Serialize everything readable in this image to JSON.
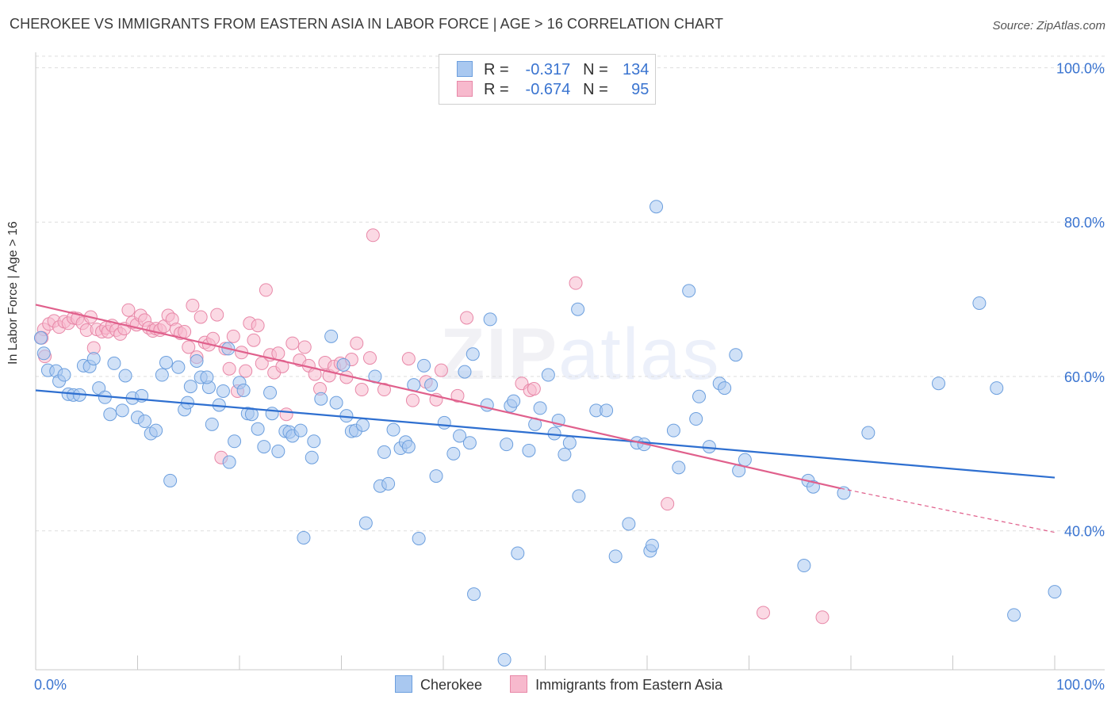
{
  "title": "CHEROKEE VS IMMIGRANTS FROM EASTERN ASIA IN LABOR FORCE | AGE > 16 CORRELATION CHART",
  "source": "Source: ZipAtlas.com",
  "watermark": "ZIPatlas",
  "colors": {
    "cherokee_fill": "#a9c8f0",
    "cherokee_stroke": "#6c9fde",
    "cherokee_line": "#2e6fd0",
    "eastern_asia_fill": "#f7b9cd",
    "eastern_asia_stroke": "#e888a8",
    "eastern_asia_line": "#e0608c",
    "tick_label": "#3a74d0"
  },
  "legend": {
    "rows": [
      {
        "r_label": "R =",
        "r_value": "-0.317",
        "n_label": "N =",
        "n_value": "134"
      },
      {
        "r_label": "R =",
        "r_value": "-0.674",
        "n_label": "N =",
        "n_value": "95"
      }
    ]
  },
  "bottom_legend": [
    "Cherokee",
    "Immigrants from Eastern Asia"
  ],
  "chart_data": {
    "type": "scatter",
    "title": "CHEROKEE VS IMMIGRANTS FROM EASTERN ASIA IN LABOR FORCE | AGE > 16 CORRELATION CHART",
    "xlabel": "",
    "ylabel": "In Labor Force | Age > 16",
    "xlim": [
      0,
      100
    ],
    "ylim": [
      22,
      102
    ],
    "x_tick_labels": [
      "0.0%",
      "100.0%"
    ],
    "y_tick_labels": [
      "40.0%",
      "60.0%",
      "80.0%",
      "100.0%"
    ],
    "y_ticks": [
      40,
      60,
      80,
      100
    ],
    "grid": true,
    "legend_position": "top-center",
    "series": [
      {
        "name": "Cherokee",
        "r": -0.317,
        "n": 134,
        "trend": {
          "x": [
            0,
            100
          ],
          "y": [
            58.2,
            46.9
          ]
        },
        "points": [
          [
            0.5,
            65
          ],
          [
            0.8,
            63
          ],
          [
            1.2,
            60.8
          ],
          [
            2,
            60.7
          ],
          [
            2.3,
            59.4
          ],
          [
            2.8,
            60.2
          ],
          [
            3.2,
            57.7
          ],
          [
            3.7,
            57.6
          ],
          [
            4.3,
            57.6
          ],
          [
            4.7,
            61.4
          ],
          [
            5.3,
            61.3
          ],
          [
            5.7,
            62.3
          ],
          [
            6.2,
            58.5
          ],
          [
            6.8,
            57.3
          ],
          [
            7.3,
            55.1
          ],
          [
            7.7,
            61.7
          ],
          [
            8.5,
            55.6
          ],
          [
            8.8,
            60.1
          ],
          [
            9.5,
            57.2
          ],
          [
            10,
            54.7
          ],
          [
            10.4,
            57.5
          ],
          [
            10.7,
            54.2
          ],
          [
            11.3,
            52.6
          ],
          [
            11.8,
            53
          ],
          [
            12.4,
            60.2
          ],
          [
            12.8,
            61.8
          ],
          [
            13.2,
            46.5
          ],
          [
            14,
            61.2
          ],
          [
            14.6,
            55.7
          ],
          [
            14.9,
            56.6
          ],
          [
            15.2,
            58.7
          ],
          [
            15.8,
            62
          ],
          [
            16.2,
            59.9
          ],
          [
            17,
            58.6
          ],
          [
            17.3,
            53.8
          ],
          [
            18,
            56.3
          ],
          [
            18.4,
            58.1
          ],
          [
            18.9,
            63.6
          ],
          [
            19,
            48.9
          ],
          [
            19.5,
            51.6
          ],
          [
            20,
            59.2
          ],
          [
            20.4,
            58.2
          ],
          [
            20.8,
            55.2
          ],
          [
            21.2,
            55.1
          ],
          [
            21.8,
            53.2
          ],
          [
            22.4,
            50.9
          ],
          [
            23,
            57.9
          ],
          [
            23.2,
            55.2
          ],
          [
            23.8,
            50.3
          ],
          [
            24.5,
            52.9
          ],
          [
            24.9,
            52.8
          ],
          [
            25.2,
            52.3
          ],
          [
            26,
            53
          ],
          [
            26.3,
            39.1
          ],
          [
            27.1,
            49.5
          ],
          [
            27.3,
            51.6
          ],
          [
            28,
            57.1
          ],
          [
            29,
            65.2
          ],
          [
            29.5,
            56.6
          ],
          [
            30.2,
            61.5
          ],
          [
            30.5,
            54.9
          ],
          [
            31,
            52.9
          ],
          [
            31.4,
            53
          ],
          [
            32.1,
            53.7
          ],
          [
            32.4,
            41
          ],
          [
            33.3,
            60
          ],
          [
            33.8,
            45.8
          ],
          [
            34.2,
            50.2
          ],
          [
            34.6,
            46.1
          ],
          [
            35.1,
            53.1
          ],
          [
            35.8,
            50.7
          ],
          [
            36.3,
            51.5
          ],
          [
            36.6,
            50.9
          ],
          [
            37.1,
            58.9
          ],
          [
            37.6,
            39
          ],
          [
            38.1,
            61.4
          ],
          [
            38.8,
            58.9
          ],
          [
            39.3,
            47.1
          ],
          [
            40.1,
            54
          ],
          [
            41,
            50
          ],
          [
            41.6,
            52.3
          ],
          [
            42.1,
            60.6
          ],
          [
            42.6,
            51.4
          ],
          [
            42.9,
            62.9
          ],
          [
            43,
            31.8
          ],
          [
            44.3,
            56.3
          ],
          [
            44.6,
            67.4
          ],
          [
            46.2,
            51.2
          ],
          [
            46.6,
            56.2
          ],
          [
            46.9,
            56.8
          ],
          [
            47.3,
            37.1
          ],
          [
            48.4,
            50.4
          ],
          [
            49,
            53.8
          ],
          [
            49.5,
            55.9
          ],
          [
            50.3,
            60.2
          ],
          [
            50.9,
            52.6
          ],
          [
            51.3,
            54.3
          ],
          [
            51.9,
            49.9
          ],
          [
            52.4,
            51.4
          ],
          [
            53.3,
            44.5
          ],
          [
            53.2,
            68.7
          ],
          [
            55,
            55.6
          ],
          [
            56,
            55.6
          ],
          [
            56.9,
            36.7
          ],
          [
            58.2,
            40.9
          ],
          [
            59,
            51.4
          ],
          [
            59.7,
            51.2
          ],
          [
            60.3,
            37.4
          ],
          [
            60.5,
            38.1
          ],
          [
            60.9,
            82
          ],
          [
            62.6,
            53
          ],
          [
            63.1,
            48.2
          ],
          [
            64.1,
            71.1
          ],
          [
            64.8,
            54.5
          ],
          [
            65.1,
            57.4
          ],
          [
            66.1,
            50.9
          ],
          [
            67.1,
            59.1
          ],
          [
            67.6,
            58.5
          ],
          [
            68.7,
            62.8
          ],
          [
            69,
            47.8
          ],
          [
            69.6,
            49.2
          ],
          [
            75.4,
            35.5
          ],
          [
            75.8,
            46.5
          ],
          [
            76.3,
            45.7
          ],
          [
            79.3,
            44.9
          ],
          [
            81.7,
            52.7
          ],
          [
            88.6,
            59.1
          ],
          [
            92.6,
            69.5
          ],
          [
            94.3,
            58.5
          ],
          [
            96,
            29.1
          ],
          [
            100,
            32.1
          ],
          [
            46,
            23.3
          ],
          [
            16.8,
            59.9
          ]
        ]
      },
      {
        "name": "Immigrants from Eastern Asia",
        "r": -0.674,
        "n": 95,
        "trend": {
          "x": [
            0,
            79
          ],
          "y": [
            69.3,
            45.5
          ]
        },
        "trend_dashed": {
          "x": [
            79,
            100
          ],
          "y": [
            45.5,
            39.8
          ]
        },
        "points": [
          [
            0.8,
            66.1
          ],
          [
            1.3,
            66.8
          ],
          [
            1.8,
            67.2
          ],
          [
            2.3,
            66.4
          ],
          [
            2.8,
            67.1
          ],
          [
            3.2,
            66.9
          ],
          [
            3.7,
            67.6
          ],
          [
            4.1,
            67.5
          ],
          [
            4.6,
            66.9
          ],
          [
            5,
            66
          ],
          [
            5.4,
            67.7
          ],
          [
            5.7,
            63.7
          ],
          [
            6,
            66.1
          ],
          [
            6.5,
            65.8
          ],
          [
            6.9,
            66.3
          ],
          [
            7.1,
            65.8
          ],
          [
            7.5,
            66.6
          ],
          [
            7.9,
            66
          ],
          [
            8.3,
            65.5
          ],
          [
            8.7,
            66.2
          ],
          [
            9.1,
            68.6
          ],
          [
            9.5,
            67
          ],
          [
            9.9,
            66.7
          ],
          [
            10.3,
            67.9
          ],
          [
            10.7,
            67.3
          ],
          [
            11.1,
            66.3
          ],
          [
            11.5,
            65.9
          ],
          [
            11.8,
            66.2
          ],
          [
            12.2,
            66
          ],
          [
            12.6,
            66.5
          ],
          [
            13,
            67.9
          ],
          [
            13.4,
            67.4
          ],
          [
            13.8,
            66.1
          ],
          [
            14.2,
            65.6
          ],
          [
            14.6,
            65.8
          ],
          [
            15,
            63.8
          ],
          [
            15.4,
            69.2
          ],
          [
            15.8,
            62.5
          ],
          [
            16.2,
            67.7
          ],
          [
            16.6,
            64.4
          ],
          [
            17,
            64.1
          ],
          [
            17.4,
            64.9
          ],
          [
            17.8,
            68
          ],
          [
            18.2,
            49.5
          ],
          [
            18.6,
            63.6
          ],
          [
            19,
            61
          ],
          [
            19.4,
            65.2
          ],
          [
            19.8,
            58.1
          ],
          [
            20.2,
            63.1
          ],
          [
            20.6,
            60.7
          ],
          [
            21,
            66.9
          ],
          [
            21.4,
            64.7
          ],
          [
            21.8,
            66.6
          ],
          [
            22.2,
            61.7
          ],
          [
            22.6,
            71.2
          ],
          [
            23,
            62.8
          ],
          [
            23.4,
            60.5
          ],
          [
            23.8,
            63
          ],
          [
            24.2,
            61.3
          ],
          [
            24.6,
            55.1
          ],
          [
            25.2,
            64.3
          ],
          [
            25.9,
            62.1
          ],
          [
            26.4,
            63.8
          ],
          [
            26.8,
            61.4
          ],
          [
            27.4,
            60.3
          ],
          [
            27.9,
            58.4
          ],
          [
            28.4,
            61.8
          ],
          [
            28.8,
            60.1
          ],
          [
            29.3,
            61.3
          ],
          [
            29.9,
            61.7
          ],
          [
            30.5,
            59.9
          ],
          [
            31,
            62.2
          ],
          [
            31.5,
            64.3
          ],
          [
            32,
            58.3
          ],
          [
            32.8,
            62.4
          ],
          [
            33.1,
            78.3
          ],
          [
            34.2,
            58.3
          ],
          [
            36.6,
            62.3
          ],
          [
            37,
            56.9
          ],
          [
            38.3,
            59.3
          ],
          [
            39.3,
            57
          ],
          [
            39.8,
            60.8
          ],
          [
            41.4,
            57.5
          ],
          [
            42.3,
            67.6
          ],
          [
            47.7,
            59.1
          ],
          [
            48.5,
            58.2
          ],
          [
            48.9,
            58.4
          ],
          [
            53,
            72.1
          ],
          [
            62,
            43.5
          ],
          [
            71.4,
            29.4
          ],
          [
            77.2,
            28.8
          ],
          [
            0.6,
            65
          ],
          [
            0.9,
            62.6
          ]
        ]
      }
    ]
  }
}
